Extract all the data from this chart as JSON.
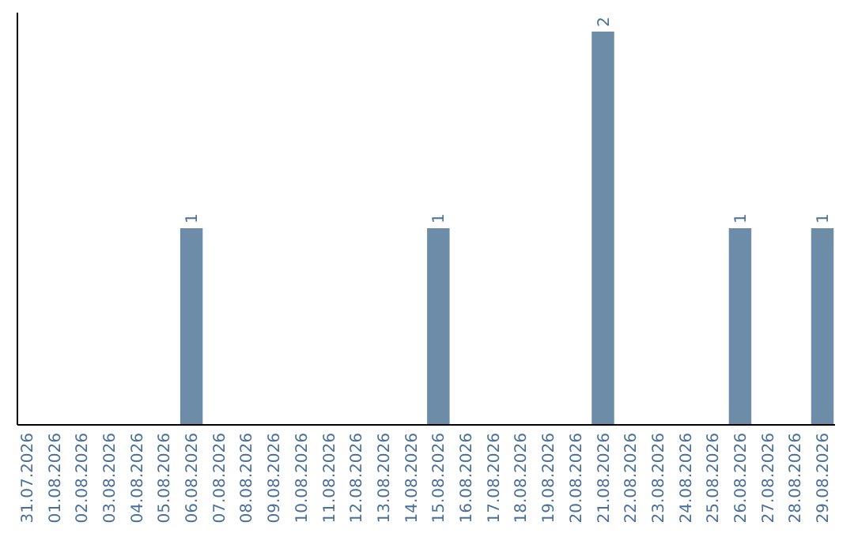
{
  "chart_data": {
    "type": "bar",
    "categories": [
      "31.07.2026",
      "01.08.2026",
      "02.08.2026",
      "03.08.2026",
      "04.08.2026",
      "05.08.2026",
      "06.08.2026",
      "07.08.2026",
      "08.08.2026",
      "09.08.2026",
      "10.08.2026",
      "11.08.2026",
      "12.08.2026",
      "13.08.2026",
      "14.08.2026",
      "15.08.2026",
      "16.08.2026",
      "17.08.2026",
      "18.08.2026",
      "19.08.2026",
      "20.08.2026",
      "21.08.2026",
      "22.08.2026",
      "23.08.2026",
      "24.08.2026",
      "25.08.2026",
      "26.08.2026",
      "27.08.2026",
      "28.08.2026",
      "29.08.2026"
    ],
    "values": [
      0,
      0,
      0,
      0,
      0,
      0,
      1,
      0,
      0,
      0,
      0,
      0,
      0,
      0,
      0,
      1,
      0,
      0,
      0,
      0,
      0,
      2,
      0,
      0,
      0,
      0,
      1,
      0,
      0,
      1
    ],
    "value_labels": [
      null,
      null,
      null,
      null,
      null,
      null,
      "1",
      null,
      null,
      null,
      null,
      null,
      null,
      null,
      null,
      "1",
      null,
      null,
      null,
      null,
      null,
      "2",
      null,
      null,
      null,
      null,
      "1",
      null,
      null,
      "1"
    ],
    "color": "#6d8ca8",
    "ylim": [
      0,
      2
    ],
    "tick_labels": "x"
  }
}
